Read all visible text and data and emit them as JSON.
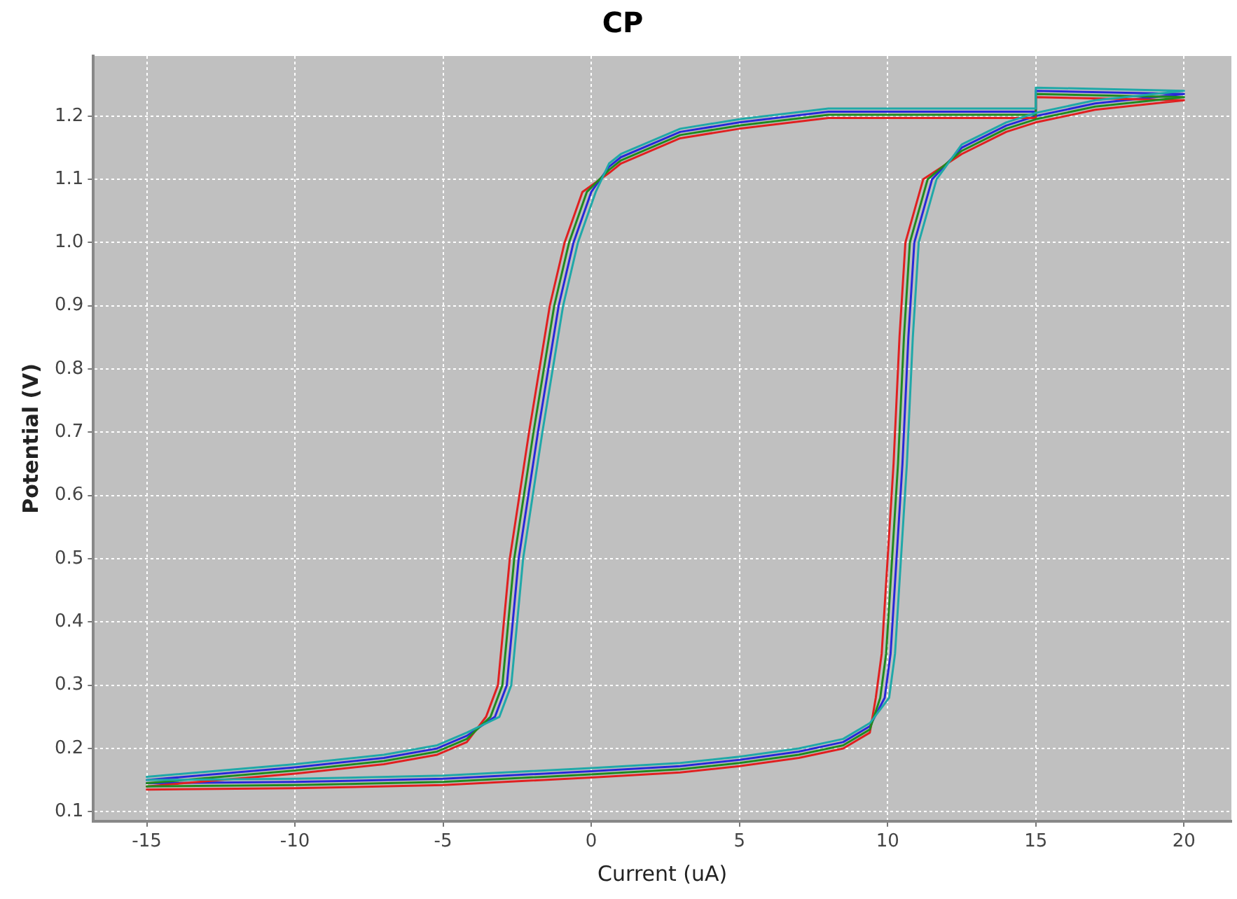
{
  "chart_data": {
    "type": "line",
    "title": "CP",
    "xlabel": "Current (uA)",
    "ylabel": "Potential (V)",
    "xlim": [
      -16.8,
      21.6
    ],
    "xticks": [
      -15,
      -10,
      -5,
      0,
      5,
      10,
      15,
      20
    ],
    "ylim": [
      0.085,
      1.295
    ],
    "yticks": [
      {
        "value": 0.1,
        "label": "0.1"
      },
      {
        "value": 0.2,
        "label": "0.2"
      },
      {
        "value": 0.3,
        "label": "0.3"
      },
      {
        "value": 0.4,
        "label": "0.4"
      },
      {
        "value": 0.5,
        "label": "0.5"
      },
      {
        "value": 0.6,
        "label": "0.6"
      },
      {
        "value": 0.7,
        "label": "0.7"
      },
      {
        "value": 0.8,
        "label": "0.8"
      },
      {
        "value": 0.9,
        "label": "0.9"
      },
      {
        "value": 1.0,
        "label": "1.0"
      },
      {
        "value": 1.1,
        "label": "1.1"
      },
      {
        "value": 1.2,
        "label": "1.2"
      }
    ],
    "grid": true,
    "legend": false,
    "marker": "none",
    "line_style": "solid",
    "series": [
      {
        "color": "#20a8a8",
        "x": [
          -15,
          -10,
          -5,
          0,
          3,
          5,
          7,
          8.5,
          9.4,
          10.05,
          10.25,
          10.45,
          10.65,
          10.85,
          11.05,
          11.65,
          12.5,
          14,
          15,
          17,
          20,
          15,
          15,
          8,
          5,
          3,
          1,
          0.6,
          0.15,
          -0.45,
          -0.95,
          -1.65,
          -2.3,
          -2.7,
          -3.1,
          -4.2,
          -5.2,
          -7,
          -10,
          -12.5,
          -15
        ],
        "values": [
          0.15,
          0.152,
          0.157,
          0.169,
          0.177,
          0.187,
          0.2,
          0.215,
          0.24,
          0.28,
          0.35,
          0.5,
          0.65,
          0.85,
          1.0,
          1.1,
          1.155,
          1.19,
          1.205,
          1.225,
          1.24,
          1.245,
          1.212,
          1.212,
          1.195,
          1.18,
          1.14,
          1.125,
          1.08,
          1.0,
          0.9,
          0.7,
          0.5,
          0.3,
          0.25,
          0.225,
          0.205,
          0.19,
          0.175,
          0.165,
          0.155
        ]
      },
      {
        "color": "#208a20",
        "x": [
          -15,
          -10,
          -5,
          0,
          3,
          5,
          7,
          8.5,
          9.4,
          9.75,
          9.95,
          10.15,
          10.35,
          10.55,
          10.75,
          11.35,
          12.5,
          14,
          15,
          17,
          20,
          15,
          15,
          8,
          5,
          3,
          1,
          0.6,
          -0.15,
          -0.75,
          -1.25,
          -1.95,
          -2.6,
          -3.0,
          -3.4,
          -4.2,
          -5.2,
          -7,
          -10,
          -12.5,
          -15
        ],
        "values": [
          0.14,
          0.142,
          0.147,
          0.159,
          0.167,
          0.177,
          0.19,
          0.205,
          0.23,
          0.28,
          0.35,
          0.5,
          0.65,
          0.85,
          1.0,
          1.1,
          1.145,
          1.18,
          1.195,
          1.215,
          1.23,
          1.235,
          1.202,
          1.202,
          1.185,
          1.17,
          1.13,
          1.115,
          1.08,
          1.0,
          0.9,
          0.7,
          0.5,
          0.3,
          0.25,
          0.215,
          0.195,
          0.18,
          0.165,
          0.155,
          0.145
        ]
      },
      {
        "color": "#e02020",
        "x": [
          -15,
          -10,
          -5,
          0,
          3,
          5,
          7,
          8.5,
          9.4,
          9.6,
          9.8,
          10.0,
          10.2,
          10.4,
          10.6,
          11.2,
          12.5,
          14,
          15,
          17,
          20,
          15,
          15,
          8,
          5,
          3,
          1,
          0.6,
          -0.3,
          -0.9,
          -1.4,
          -2.1,
          -2.75,
          -3.15,
          -3.55,
          -4.2,
          -5.2,
          -7,
          -10,
          -12.5,
          -15
        ],
        "values": [
          0.135,
          0.137,
          0.142,
          0.154,
          0.162,
          0.172,
          0.185,
          0.2,
          0.225,
          0.28,
          0.35,
          0.5,
          0.65,
          0.85,
          1.0,
          1.1,
          1.14,
          1.175,
          1.19,
          1.21,
          1.225,
          1.23,
          1.197,
          1.197,
          1.18,
          1.165,
          1.125,
          1.11,
          1.08,
          1.0,
          0.9,
          0.7,
          0.5,
          0.3,
          0.25,
          0.21,
          0.19,
          0.175,
          0.16,
          0.15,
          0.14
        ]
      },
      {
        "color": "#2828d8",
        "x": [
          -15,
          -10,
          -5,
          0,
          3,
          5,
          7,
          8.5,
          9.4,
          9.9,
          10.1,
          10.3,
          10.5,
          10.7,
          10.9,
          11.5,
          12.5,
          14,
          15,
          17,
          20,
          15,
          15,
          8,
          5,
          3,
          1,
          0.6,
          0,
          -0.6,
          -1.1,
          -1.8,
          -2.45,
          -2.85,
          -3.25,
          -4.2,
          -5.2,
          -7,
          -10,
          -12.5,
          -15
        ],
        "values": [
          0.145,
          0.147,
          0.152,
          0.164,
          0.172,
          0.182,
          0.195,
          0.21,
          0.235,
          0.28,
          0.35,
          0.5,
          0.65,
          0.85,
          1.0,
          1.1,
          1.15,
          1.185,
          1.2,
          1.22,
          1.235,
          1.24,
          1.207,
          1.207,
          1.19,
          1.175,
          1.135,
          1.12,
          1.08,
          1.0,
          0.9,
          0.7,
          0.5,
          0.3,
          0.25,
          0.22,
          0.2,
          0.185,
          0.17,
          0.16,
          0.15
        ]
      }
    ]
  }
}
